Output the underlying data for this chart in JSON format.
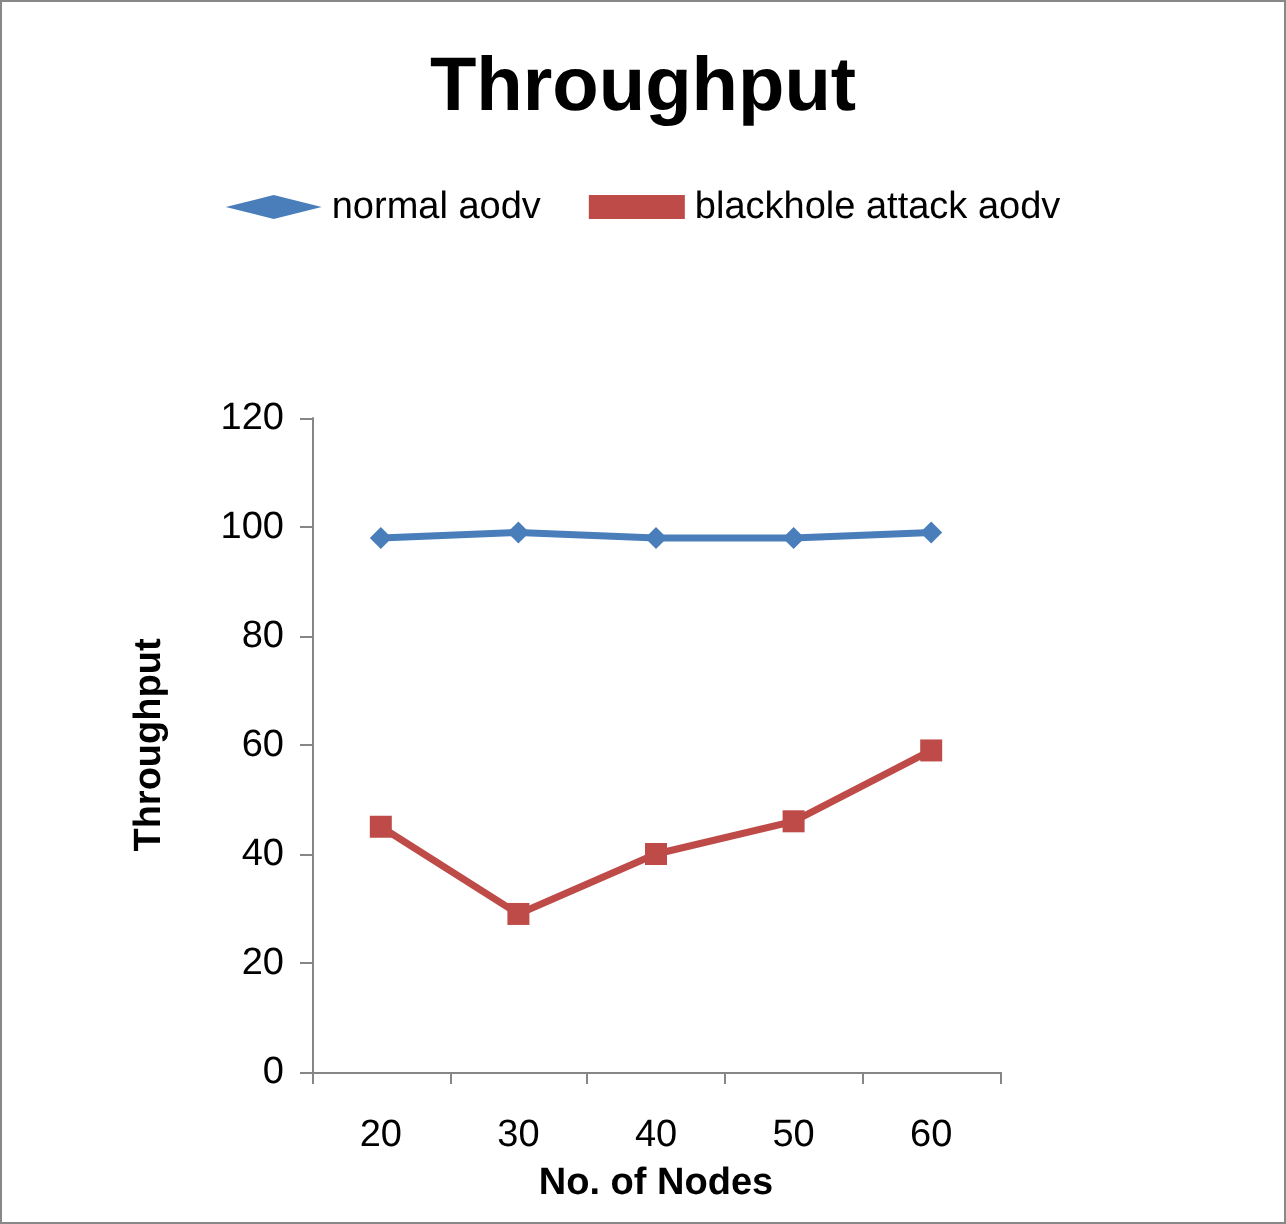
{
  "chart_data": {
    "type": "line",
    "title": "Throughput",
    "xlabel": "No. of Nodes",
    "ylabel": "Throughput",
    "categories": [
      "20",
      "30",
      "40",
      "50",
      "60"
    ],
    "series": [
      {
        "name": "normal aodv",
        "color": "#4a7ebb",
        "marker": "diamond",
        "values": [
          98,
          99,
          98,
          98,
          99
        ]
      },
      {
        "name": "blackhole attack aodv",
        "color": "#be4b48",
        "marker": "square",
        "values": [
          45,
          29,
          40,
          46,
          59
        ]
      }
    ],
    "ylim": [
      0,
      120
    ],
    "yticks": [
      0,
      20,
      40,
      60,
      80,
      100,
      120
    ],
    "grid": false,
    "legend": "top",
    "line_style": "solid"
  }
}
